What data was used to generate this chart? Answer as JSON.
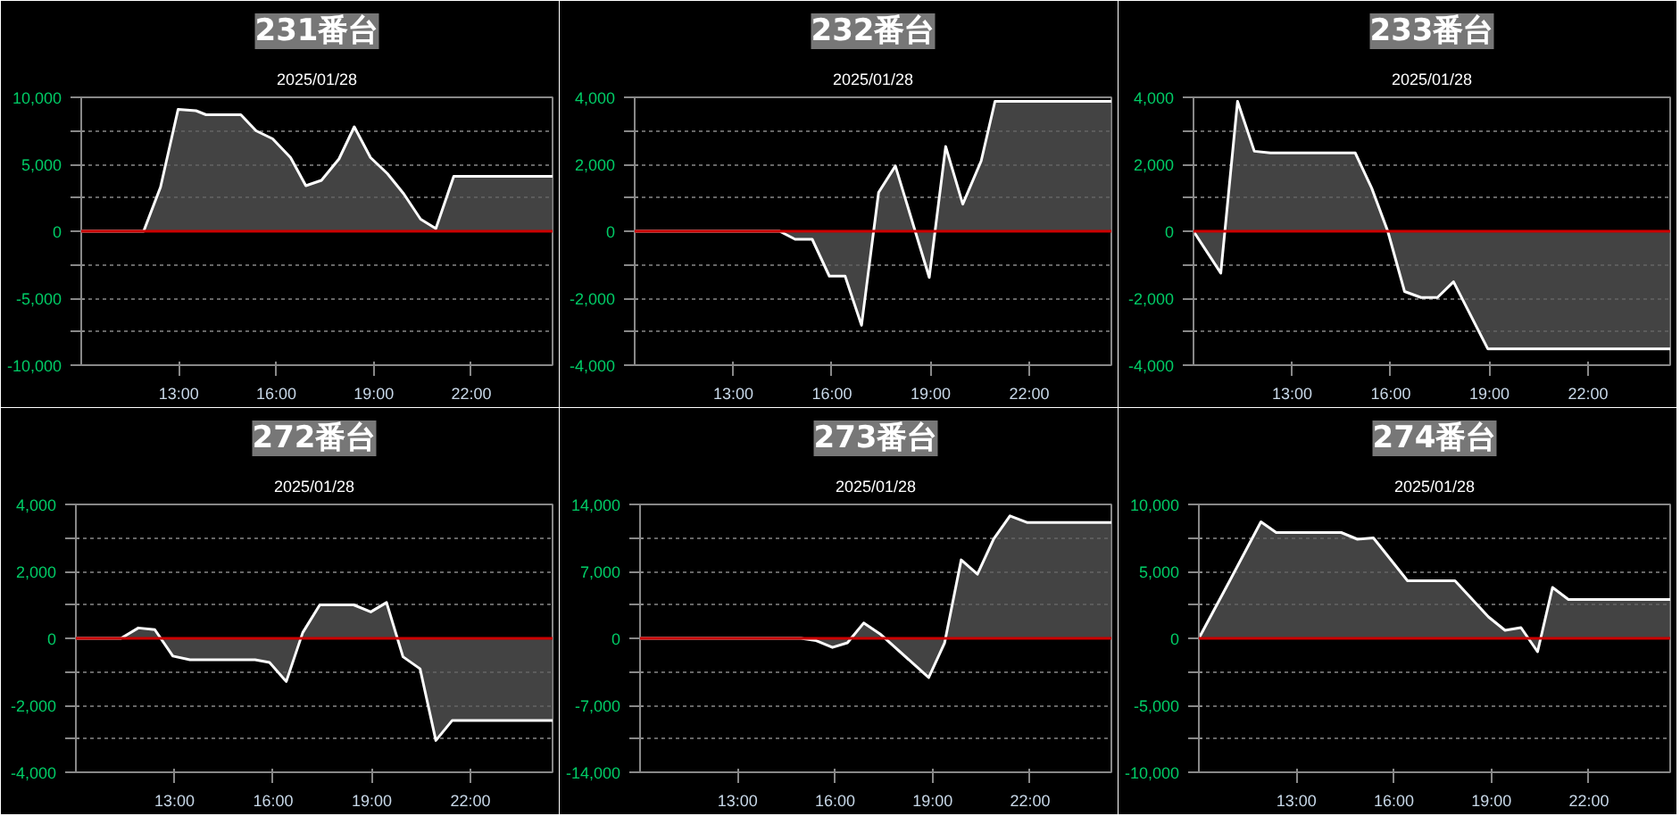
{
  "chart_data": [
    {
      "type": "area",
      "title": "231番台",
      "subtitle": "2025/01/28",
      "color": "#ffffff",
      "grid": "y",
      "xlim": [
        10,
        24.5
      ],
      "ylim": [
        -10000,
        10000
      ],
      "xticks": [
        {
          "value": 13,
          "label": "13:00"
        },
        {
          "value": 16,
          "label": "16:00"
        },
        {
          "value": 19,
          "label": "19:00"
        },
        {
          "value": 22,
          "label": "22:00"
        }
      ],
      "yticks": [
        {
          "value": -10000,
          "label": "-10,000"
        },
        {
          "value": -7500,
          "label": null
        },
        {
          "value": -5000,
          "label": "-5,000"
        },
        {
          "value": -2500,
          "label": null
        },
        0,
        {
          "value": 2500,
          "label": null
        },
        {
          "value": 5000,
          "label": "5,000"
        },
        {
          "value": 7500,
          "label": null
        },
        {
          "value": 10000,
          "label": "10,000"
        }
      ],
      "ref_lines": [
        {
          "axis": "y",
          "value": 0,
          "label": null,
          "color": "#cc0000"
        }
      ],
      "x": [
        10,
        11.92,
        12.44,
        12.98,
        13.53,
        13.84,
        14.91,
        15.38,
        15.89,
        16.44,
        16.91,
        17.39,
        17.93,
        18.4,
        18.9,
        19.42,
        19.92,
        20.44,
        20.91,
        21.46,
        24.5
      ],
      "values": [
        0,
        0,
        3300,
        9100,
        9000,
        8700,
        8700,
        7500,
        6900,
        5500,
        3400,
        3800,
        5400,
        7800,
        5500,
        4300,
        2800,
        900,
        200,
        4100,
        4100
      ]
    },
    {
      "type": "area",
      "title": "232番台",
      "subtitle": "2025/01/28",
      "color": "#ffffff",
      "grid": "y",
      "xlim": [
        10,
        24.5
      ],
      "ylim": [
        -4000,
        4000
      ],
      "xticks": [
        {
          "value": 13,
          "label": "13:00"
        },
        {
          "value": 16,
          "label": "16:00"
        },
        {
          "value": 19,
          "label": "19:00"
        },
        {
          "value": 22,
          "label": "22:00"
        }
      ],
      "yticks": [
        {
          "value": -4000,
          "label": "-4,000"
        },
        {
          "value": -3000,
          "label": null
        },
        {
          "value": -2000,
          "label": "-2,000"
        },
        {
          "value": -1000,
          "label": null
        },
        0,
        {
          "value": 1000,
          "label": null
        },
        {
          "value": 2000,
          "label": "2,000"
        },
        {
          "value": 3000,
          "label": null
        },
        {
          "value": 4000,
          "label": "4,000"
        }
      ],
      "ref_lines": [
        {
          "axis": "y",
          "value": 0,
          "label": null,
          "color": "#cc0000"
        }
      ],
      "x": [
        10,
        14.41,
        14.88,
        15.4,
        15.92,
        16.4,
        16.9,
        17.42,
        17.93,
        18.96,
        19.46,
        19.98,
        20.54,
        20.96,
        24.5
      ],
      "values": [
        0,
        0,
        -240,
        -240,
        -1340,
        -1340,
        -2810,
        1160,
        1950,
        -1380,
        2530,
        810,
        2100,
        3880,
        3880
      ]
    },
    {
      "type": "area",
      "title": "233番台",
      "subtitle": "2025/01/28",
      "color": "#ffffff",
      "grid": "y",
      "xlim": [
        10,
        24.5
      ],
      "ylim": [
        -4000,
        4000
      ],
      "xticks": [
        {
          "value": 13,
          "label": "13:00"
        },
        {
          "value": 16,
          "label": "16:00"
        },
        {
          "value": 19,
          "label": "19:00"
        },
        {
          "value": 22,
          "label": "22:00"
        }
      ],
      "yticks": [
        {
          "value": -4000,
          "label": "-4,000"
        },
        {
          "value": -3000,
          "label": null
        },
        {
          "value": -2000,
          "label": "-2,000"
        },
        {
          "value": -1000,
          "label": null
        },
        0,
        {
          "value": 1000,
          "label": null
        },
        {
          "value": 2000,
          "label": "2,000"
        },
        {
          "value": 3000,
          "label": null
        },
        {
          "value": 4000,
          "label": "4,000"
        }
      ],
      "ref_lines": [
        {
          "axis": "y",
          "value": 0,
          "label": null,
          "color": "#cc0000"
        }
      ],
      "x": [
        10,
        10.83,
        11.34,
        11.85,
        12.34,
        14.92,
        15.42,
        15.91,
        16.42,
        16.92,
        17.42,
        17.91,
        18.95,
        24.5
      ],
      "values": [
        0,
        -1250,
        3880,
        2390,
        2340,
        2340,
        1290,
        0,
        -1800,
        -1980,
        -1980,
        -1510,
        -3510,
        -3510
      ]
    },
    {
      "type": "area",
      "title": "272番台",
      "subtitle": "2025/01/28",
      "color": "#ffffff",
      "grid": "y",
      "xlim": [
        10,
        24.5
      ],
      "ylim": [
        -4000,
        4000
      ],
      "xticks": [
        {
          "value": 13,
          "label": "13:00"
        },
        {
          "value": 16,
          "label": "16:00"
        },
        {
          "value": 19,
          "label": "19:00"
        },
        {
          "value": 22,
          "label": "22:00"
        }
      ],
      "yticks": [
        {
          "value": -4000,
          "label": "-4,000"
        },
        {
          "value": -3000,
          "label": null
        },
        {
          "value": -2000,
          "label": "-2,000"
        },
        {
          "value": -1000,
          "label": null
        },
        0,
        {
          "value": 1000,
          "label": null
        },
        {
          "value": 2000,
          "label": "2,000"
        },
        {
          "value": 3000,
          "label": null
        },
        {
          "value": 4000,
          "label": "4,000"
        }
      ],
      "ref_lines": [
        {
          "axis": "y",
          "value": 0,
          "label": null,
          "color": "#cc0000"
        }
      ],
      "x": [
        10,
        11.37,
        11.9,
        12.4,
        12.95,
        13.47,
        15.45,
        15.89,
        16.4,
        16.9,
        17.42,
        18.45,
        18.97,
        19.45,
        19.95,
        20.47,
        20.95,
        21.45,
        24.5
      ],
      "values": [
        0,
        0,
        310,
        260,
        -530,
        -640,
        -640,
        -720,
        -1290,
        170,
        1000,
        1000,
        790,
        1070,
        -550,
        -910,
        -3050,
        -2450,
        -2450
      ]
    },
    {
      "type": "area",
      "title": "273番台",
      "subtitle": "2025/01/28",
      "color": "#ffffff",
      "grid": "y",
      "xlim": [
        10,
        24.5
      ],
      "ylim": [
        -14000,
        14000
      ],
      "xticks": [
        {
          "value": 13,
          "label": "13:00"
        },
        {
          "value": 16,
          "label": "16:00"
        },
        {
          "value": 19,
          "label": "19:00"
        },
        {
          "value": 22,
          "label": "22:00"
        }
      ],
      "yticks": [
        {
          "value": -14000,
          "label": "-14,000"
        },
        {
          "value": -10500,
          "label": null
        },
        {
          "value": -7000,
          "label": "-7,000"
        },
        {
          "value": -3500,
          "label": null
        },
        0,
        {
          "value": 3500,
          "label": null
        },
        {
          "value": 7000,
          "label": "7,000"
        },
        {
          "value": 10500,
          "label": null
        },
        {
          "value": 14000,
          "label": "14,000"
        }
      ],
      "ref_lines": [
        {
          "axis": "y",
          "value": 0,
          "label": null,
          "color": "#cc0000"
        }
      ],
      "x": [
        10,
        14.95,
        15.42,
        15.92,
        16.38,
        16.88,
        17.38,
        18.88,
        19.37,
        19.88,
        20.38,
        20.88,
        21.38,
        21.92,
        24.5
      ],
      "values": [
        0,
        0,
        -240,
        -950,
        -470,
        1600,
        470,
        -4100,
        -470,
        8200,
        6700,
        10400,
        12800,
        12100,
        12100
      ]
    },
    {
      "type": "area",
      "title": "274番台",
      "subtitle": "2025/01/28",
      "color": "#ffffff",
      "grid": "y",
      "xlim": [
        10,
        24.5
      ],
      "ylim": [
        -10000,
        10000
      ],
      "xticks": [
        {
          "value": 13,
          "label": "13:00"
        },
        {
          "value": 16,
          "label": "16:00"
        },
        {
          "value": 19,
          "label": "19:00"
        },
        {
          "value": 22,
          "label": "22:00"
        }
      ],
      "yticks": [
        {
          "value": -10000,
          "label": "-10,000"
        },
        {
          "value": -7500,
          "label": null
        },
        {
          "value": -5000,
          "label": "-5,000"
        },
        {
          "value": -2500,
          "label": null
        },
        0,
        {
          "value": 2500,
          "label": null
        },
        {
          "value": 5000,
          "label": "5,000"
        },
        {
          "value": 7500,
          "label": null
        },
        {
          "value": 10000,
          "label": "10,000"
        }
      ],
      "ref_lines": [
        {
          "axis": "y",
          "value": 0,
          "label": null,
          "color": "#cc0000"
        }
      ],
      "x": [
        10,
        10.95,
        11.91,
        12.38,
        14.38,
        14.88,
        15.37,
        16.42,
        17.88,
        18.91,
        19.42,
        19.91,
        20.42,
        20.88,
        21.37,
        24.5
      ],
      "values": [
        0,
        4300,
        8700,
        7900,
        7900,
        7400,
        7500,
        4300,
        4300,
        1600,
        600,
        800,
        -1000,
        3800,
        2900,
        2900
      ]
    }
  ]
}
